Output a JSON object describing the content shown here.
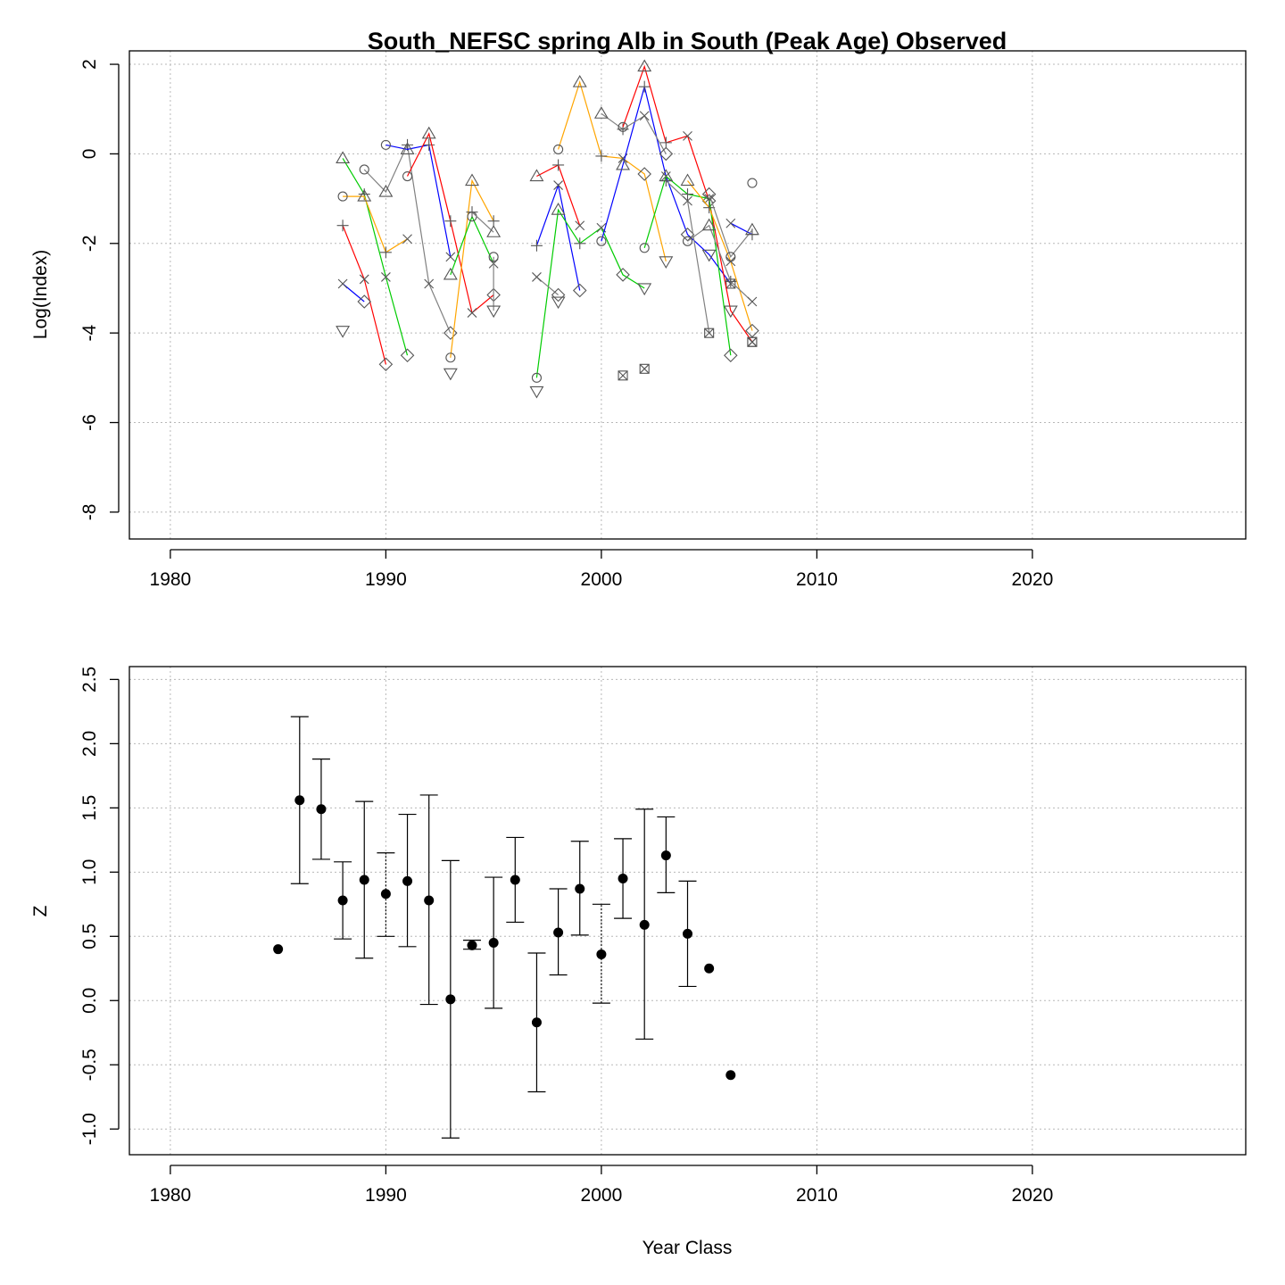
{
  "chart_data": [
    {
      "type": "line",
      "title": "South_NEFSC spring Alb in South (Peak Age) Observed",
      "xlabel": "",
      "ylabel": "Log(Index)",
      "xlim": [
        1978.1,
        2029.9
      ],
      "ylim": [
        -8.6,
        2.3
      ],
      "x_ticks": [
        1980,
        1990,
        2000,
        2010,
        2020
      ],
      "y_ticks": [
        -8,
        -6,
        -4,
        -2,
        0,
        2
      ],
      "grid": true,
      "legend": "none",
      "cohort_colors": [
        "#ff0000",
        "#0000ff",
        "#00cc00",
        "#ffa500",
        "#808080"
      ],
      "series": [
        {
          "color": "#ff0000",
          "points": [
            {
              "x": 1988,
              "y": -1.6,
              "marker": "plus"
            },
            {
              "x": 1989,
              "y": -2.8,
              "marker": "x"
            },
            {
              "x": 1990,
              "y": -4.7,
              "marker": "diamond"
            }
          ]
        },
        {
          "color": "#0000ff",
          "points": [
            {
              "x": 1988,
              "y": -2.9,
              "marker": "x"
            },
            {
              "x": 1989,
              "y": -3.3,
              "marker": "diamond"
            }
          ]
        },
        {
          "color": "#00cc00",
          "points": [
            {
              "x": 1988,
              "y": -0.1,
              "marker": "triangle-up"
            },
            {
              "x": 1989,
              "y": -0.9,
              "marker": "plus"
            },
            {
              "x": 1990,
              "y": -2.75,
              "marker": "x"
            },
            {
              "x": 1991,
              "y": -4.5,
              "marker": "diamond"
            }
          ]
        },
        {
          "color": "#ffa500",
          "points": [
            {
              "x": 1988,
              "y": -0.95,
              "marker": "circle"
            },
            {
              "x": 1989,
              "y": -0.95,
              "marker": "triangle-up"
            },
            {
              "x": 1990,
              "y": -2.2,
              "marker": "plus"
            },
            {
              "x": 1991,
              "y": -1.9,
              "marker": "x"
            }
          ]
        },
        {
          "color": "#808080",
          "points": [
            {
              "x": 1989,
              "y": -0.35,
              "marker": "circle"
            },
            {
              "x": 1990,
              "y": -0.85,
              "marker": "triangle-up"
            },
            {
              "x": 1991,
              "y": 0.2,
              "marker": "plus"
            },
            {
              "x": 1992,
              "y": -2.9,
              "marker": "x"
            },
            {
              "x": 1993,
              "y": -4.0,
              "marker": "diamond"
            }
          ]
        },
        {
          "color": "#0000ff",
          "points": [
            {
              "x": 1990,
              "y": 0.2,
              "marker": "circle"
            },
            {
              "x": 1991,
              "y": 0.1,
              "marker": "triangle-up"
            },
            {
              "x": 1992,
              "y": 0.2,
              "marker": "plus"
            },
            {
              "x": 1993,
              "y": -2.3,
              "marker": "x"
            }
          ]
        },
        {
          "color": "#ff0000",
          "points": [
            {
              "x": 1991,
              "y": -0.5,
              "marker": "circle"
            },
            {
              "x": 1992,
              "y": 0.45,
              "marker": "triangle-up"
            },
            {
              "x": 1993,
              "y": -1.5,
              "marker": "plus"
            },
            {
              "x": 1994,
              "y": -3.55,
              "marker": "x"
            },
            {
              "x": 1995,
              "y": -3.15,
              "marker": "diamond"
            }
          ]
        },
        {
          "color": "#ffa500",
          "points": [
            {
              "x": 1993,
              "y": -4.55,
              "marker": "circle"
            },
            {
              "x": 1994,
              "y": -0.6,
              "marker": "triangle-up"
            },
            {
              "x": 1995,
              "y": -1.5,
              "marker": "plus"
            }
          ]
        },
        {
          "color": "#00cc00",
          "points": [
            {
              "x": 1993,
              "y": -2.7,
              "marker": "triangle-up"
            },
            {
              "x": 1994,
              "y": -1.4,
              "marker": "circle"
            },
            {
              "x": 1995,
              "y": -2.45,
              "marker": "x"
            }
          ]
        },
        {
          "color": "#808080",
          "points": [
            {
              "x": 1993,
              "y": -4.9,
              "marker": "triangle-down"
            }
          ]
        },
        {
          "color": "#808080",
          "points": [
            {
              "x": 1994,
              "y": -1.3,
              "marker": "plus"
            },
            {
              "x": 1995,
              "y": -1.75,
              "marker": "triangle-up"
            }
          ]
        },
        {
          "color": "#808080",
          "points": [
            {
              "x": 1995,
              "y": -2.3,
              "marker": "circle"
            },
            {
              "x": 1995,
              "y": -3.5,
              "marker": "triangle-down"
            }
          ]
        },
        {
          "color": "#808080",
          "points": [
            {
              "x": 1988,
              "y": -3.95,
              "marker": "triangle-down"
            }
          ]
        },
        {
          "color": "#ff0000",
          "points": [
            {
              "x": 1997,
              "y": -0.5,
              "marker": "triangle-up"
            },
            {
              "x": 1998,
              "y": -0.25,
              "marker": "plus"
            },
            {
              "x": 1999,
              "y": -1.6,
              "marker": "x"
            }
          ]
        },
        {
          "color": "#0000ff",
          "points": [
            {
              "x": 1997,
              "y": -2.05,
              "marker": "plus"
            },
            {
              "x": 1998,
              "y": -0.7,
              "marker": "x"
            },
            {
              "x": 1999,
              "y": -3.05,
              "marker": "diamond"
            }
          ]
        },
        {
          "color": "#00cc00",
          "points": [
            {
              "x": 1997,
              "y": -5.0,
              "marker": "circle"
            },
            {
              "x": 1998,
              "y": -1.25,
              "marker": "triangle-up"
            },
            {
              "x": 1999,
              "y": -2.0,
              "marker": "plus"
            },
            {
              "x": 2000,
              "y": -1.65,
              "marker": "x"
            },
            {
              "x": 2001,
              "y": -2.7,
              "marker": "diamond"
            },
            {
              "x": 2002,
              "y": -3.0,
              "marker": "triangle-down"
            }
          ]
        },
        {
          "color": "#ffa500",
          "points": [
            {
              "x": 1998,
              "y": 0.1,
              "marker": "circle"
            },
            {
              "x": 1999,
              "y": 1.6,
              "marker": "triangle-up"
            },
            {
              "x": 2000,
              "y": -0.05,
              "marker": "plus"
            },
            {
              "x": 2001,
              "y": -0.1,
              "marker": "x"
            },
            {
              "x": 2002,
              "y": -0.45,
              "marker": "diamond"
            },
            {
              "x": 2003,
              "y": -2.4,
              "marker": "triangle-down"
            }
          ]
        },
        {
          "color": "#808080",
          "points": [
            {
              "x": 1997,
              "y": -2.75,
              "marker": "x"
            },
            {
              "x": 1998,
              "y": -3.15,
              "marker": "diamond"
            }
          ]
        },
        {
          "color": "#808080",
          "points": [
            {
              "x": 1997,
              "y": -5.3,
              "marker": "triangle-down"
            }
          ]
        },
        {
          "color": "#808080",
          "points": [
            {
              "x": 1998,
              "y": -3.3,
              "marker": "triangle-down"
            }
          ]
        },
        {
          "color": "#0000ff",
          "points": [
            {
              "x": 2000,
              "y": -1.95,
              "marker": "circle"
            },
            {
              "x": 2001,
              "y": -0.25,
              "marker": "triangle-up"
            },
            {
              "x": 2002,
              "y": 1.5,
              "marker": "plus"
            },
            {
              "x": 2003,
              "y": -0.5,
              "marker": "x"
            },
            {
              "x": 2004,
              "y": -1.8,
              "marker": "diamond"
            },
            {
              "x": 2005,
              "y": -2.25,
              "marker": "triangle-down"
            },
            {
              "x": 2006,
              "y": -2.9,
              "marker": "boxx"
            }
          ]
        },
        {
          "color": "#808080",
          "points": [
            {
              "x": 2000,
              "y": 0.9,
              "marker": "triangle-up"
            },
            {
              "x": 2001,
              "y": 0.55,
              "marker": "plus"
            },
            {
              "x": 2002,
              "y": 0.85,
              "marker": "x"
            },
            {
              "x": 2003,
              "y": 0.0,
              "marker": "diamond"
            }
          ]
        },
        {
          "color": "#ff0000",
          "points": [
            {
              "x": 2001,
              "y": 0.6,
              "marker": "circle"
            },
            {
              "x": 2002,
              "y": 1.95,
              "marker": "triangle-up"
            },
            {
              "x": 2003,
              "y": 0.25,
              "marker": "plus"
            },
            {
              "x": 2004,
              "y": 0.4,
              "marker": "x"
            },
            {
              "x": 2005,
              "y": -1.05,
              "marker": "diamond"
            },
            {
              "x": 2006,
              "y": -3.5,
              "marker": "triangle-down"
            },
            {
              "x": 2007,
              "y": -4.2,
              "marker": "boxx"
            }
          ]
        },
        {
          "color": "#00cc00",
          "points": [
            {
              "x": 2002,
              "y": -2.1,
              "marker": "circle"
            },
            {
              "x": 2003,
              "y": -0.5,
              "marker": "triangle-up"
            },
            {
              "x": 2004,
              "y": -0.9,
              "marker": "plus"
            },
            {
              "x": 2005,
              "y": -1.0,
              "marker": "x"
            },
            {
              "x": 2006,
              "y": -4.5,
              "marker": "diamond"
            }
          ]
        },
        {
          "color": "#ffa500",
          "points": [
            {
              "x": 2004,
              "y": -0.6,
              "marker": "triangle-up"
            },
            {
              "x": 2005,
              "y": -1.2,
              "marker": "plus"
            },
            {
              "x": 2006,
              "y": -2.4,
              "marker": "x"
            },
            {
              "x": 2007,
              "y": -3.95,
              "marker": "diamond"
            }
          ]
        },
        {
          "color": "#808080",
          "points": [
            {
              "x": 2003,
              "y": -0.6,
              "marker": "plus"
            },
            {
              "x": 2004,
              "y": -1.05,
              "marker": "x"
            },
            {
              "x": 2005,
              "y": -4.0,
              "marker": "boxx"
            }
          ]
        },
        {
          "color": "#808080",
          "points": [
            {
              "x": 2004,
              "y": -1.95,
              "marker": "circle"
            },
            {
              "x": 2005,
              "y": -1.6,
              "marker": "triangle-up"
            },
            {
              "x": 2006,
              "y": -2.85,
              "marker": "plus"
            },
            {
              "x": 2007,
              "y": -3.3,
              "marker": "x"
            }
          ]
        },
        {
          "color": "#0000ff",
          "points": [
            {
              "x": 2006,
              "y": -1.55,
              "marker": "x"
            },
            {
              "x": 2007,
              "y": -1.8,
              "marker": "plus"
            }
          ]
        },
        {
          "color": "#808080",
          "points": [
            {
              "x": 2005,
              "y": -0.9,
              "marker": "diamond"
            },
            {
              "x": 2006,
              "y": -2.3,
              "marker": "circle"
            },
            {
              "x": 2007,
              "y": -1.7,
              "marker": "triangle-up"
            }
          ]
        },
        {
          "color": "#808080",
          "points": [
            {
              "x": 2007,
              "y": -0.65,
              "marker": "circle"
            }
          ]
        },
        {
          "color": "#808080",
          "points": [
            {
              "x": 2007,
              "y": -4.2,
              "marker": "boxx"
            }
          ]
        },
        {
          "color": "#808080",
          "points": [
            {
              "x": 2001,
              "y": -4.95,
              "marker": "boxx"
            }
          ]
        },
        {
          "color": "#808080",
          "points": [
            {
              "x": 2002,
              "y": -4.8,
              "marker": "boxx"
            }
          ]
        }
      ]
    },
    {
      "type": "scatter",
      "title": "",
      "xlabel": "Year Class",
      "ylabel": "Z",
      "xlim": [
        1978.1,
        2029.9
      ],
      "ylim": [
        -1.2,
        2.6
      ],
      "x_ticks": [
        1980,
        1990,
        2000,
        2010,
        2020
      ],
      "y_ticks": [
        -1.0,
        -0.5,
        0.0,
        0.5,
        1.0,
        1.5,
        2.0,
        2.5
      ],
      "y_tick_labels": [
        "-1.0",
        "-0.5",
        "0.0",
        "0.5",
        "1.0",
        "1.5",
        "2.0",
        "2.5"
      ],
      "grid": true,
      "legend": "none",
      "error_bars": "estimate with confidence interval",
      "points": [
        {
          "x": 1985,
          "y": 0.4
        },
        {
          "x": 1986,
          "y": 1.56,
          "lo": 0.91,
          "hi": 2.21
        },
        {
          "x": 1987,
          "y": 1.49,
          "lo": 1.1,
          "hi": 1.88
        },
        {
          "x": 1988,
          "y": 0.78,
          "lo": 0.48,
          "hi": 1.08
        },
        {
          "x": 1989,
          "y": 0.94,
          "lo": 0.33,
          "hi": 1.55
        },
        {
          "x": 1990,
          "y": 0.83,
          "lo": 0.5,
          "hi": 1.15,
          "dotted": true
        },
        {
          "x": 1991,
          "y": 0.93,
          "lo": 0.42,
          "hi": 1.45
        },
        {
          "x": 1992,
          "y": 0.78,
          "lo": -0.03,
          "hi": 1.6
        },
        {
          "x": 1993,
          "y": 0.01,
          "lo": -1.07,
          "hi": 1.09
        },
        {
          "x": 1994,
          "y": 0.43,
          "lo": 0.4,
          "hi": 0.47
        },
        {
          "x": 1995,
          "y": 0.45,
          "lo": -0.06,
          "hi": 0.96
        },
        {
          "x": 1996,
          "y": 0.94,
          "lo": 0.61,
          "hi": 1.27
        },
        {
          "x": 1997,
          "y": -0.17,
          "lo": -0.71,
          "hi": 0.37
        },
        {
          "x": 1998,
          "y": 0.53,
          "lo": 0.2,
          "hi": 0.87
        },
        {
          "x": 1999,
          "y": 0.87,
          "lo": 0.51,
          "hi": 1.24
        },
        {
          "x": 2000,
          "y": 0.36,
          "lo": -0.02,
          "hi": 0.75,
          "dotted": true
        },
        {
          "x": 2001,
          "y": 0.95,
          "lo": 0.64,
          "hi": 1.26
        },
        {
          "x": 2002,
          "y": 0.59,
          "lo": -0.3,
          "hi": 1.49
        },
        {
          "x": 2003,
          "y": 1.13,
          "lo": 0.84,
          "hi": 1.43
        },
        {
          "x": 2004,
          "y": 0.52,
          "lo": 0.11,
          "hi": 0.93
        },
        {
          "x": 2005,
          "y": 0.25
        },
        {
          "x": 2006,
          "y": -0.58
        }
      ]
    }
  ]
}
